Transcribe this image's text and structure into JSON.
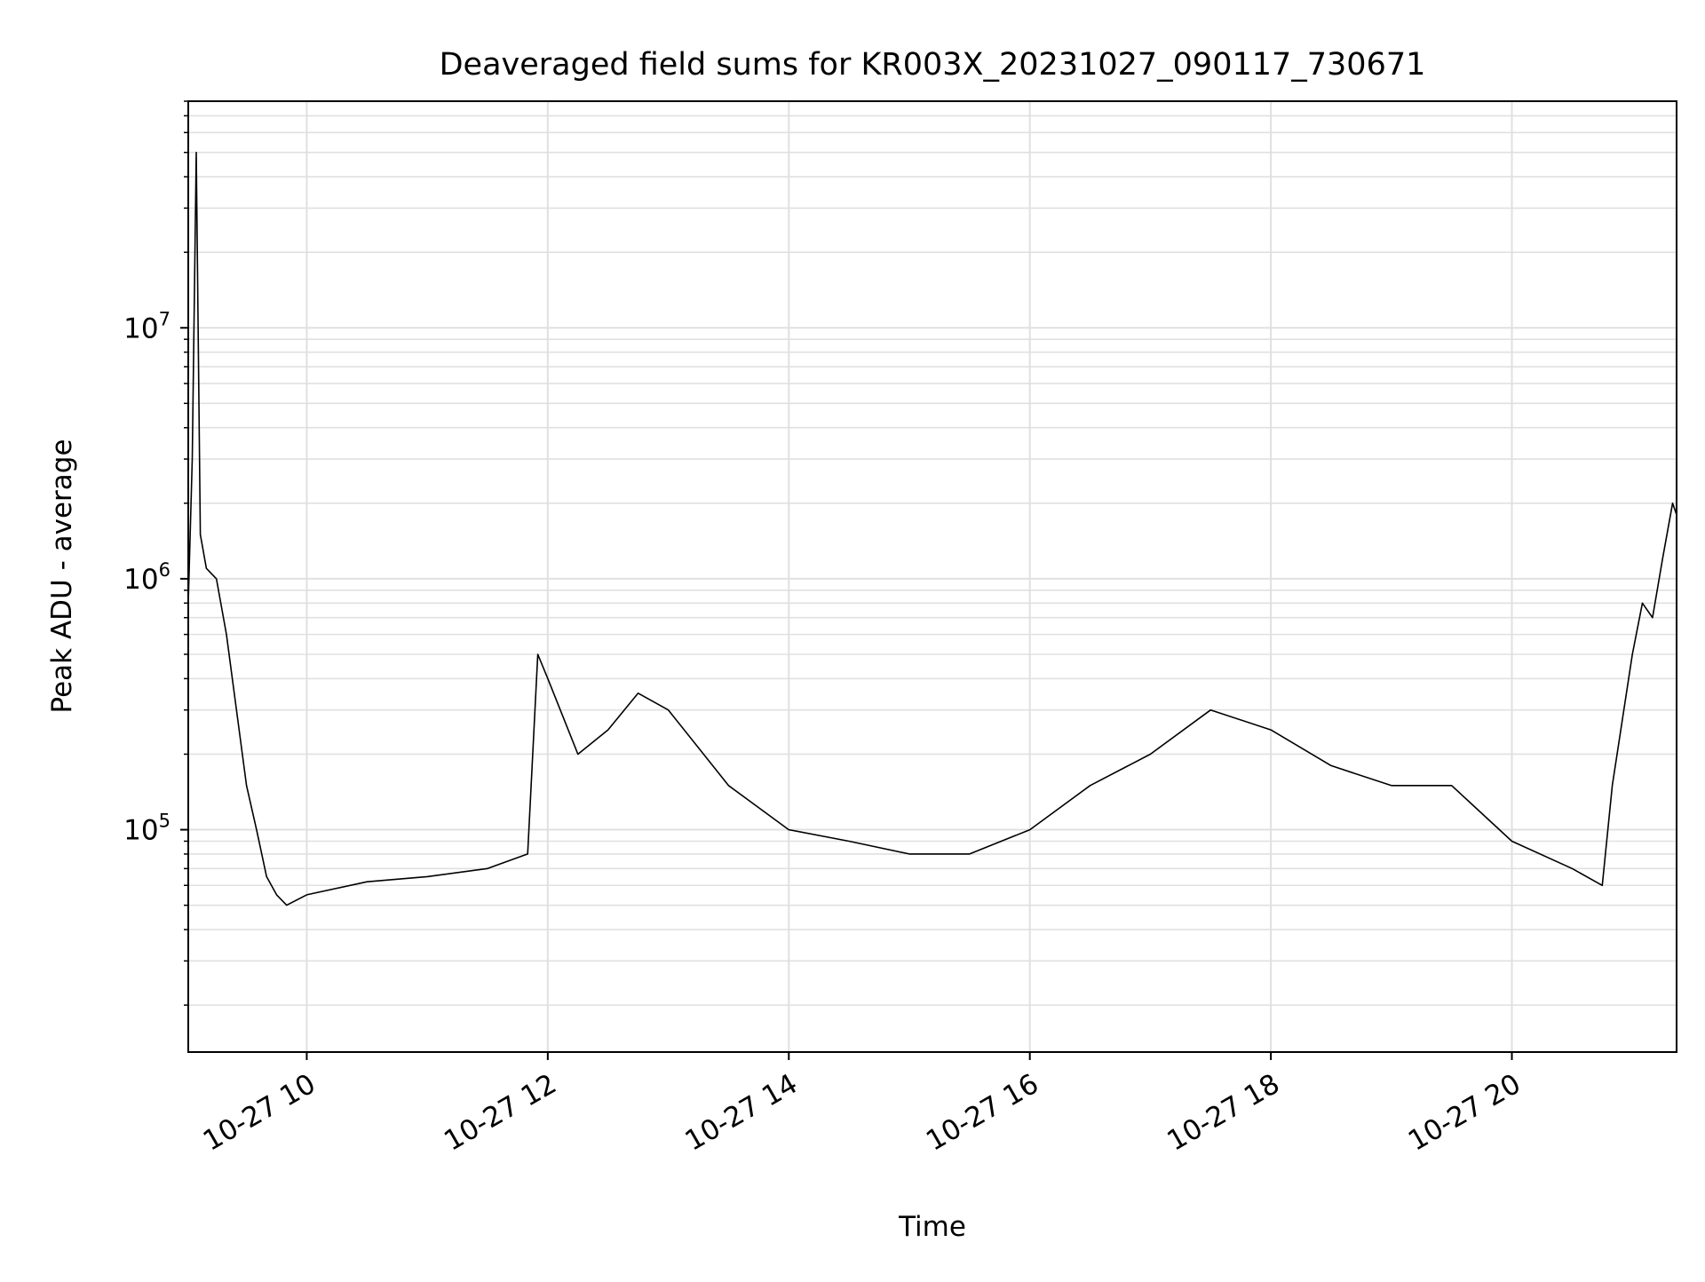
{
  "chart_data": {
    "type": "line",
    "title": "Deaveraged field sums for KR003X_20231027_090117_730671",
    "xlabel": "Time",
    "ylabel": "Peak ADU - average",
    "x_ticks": [
      "10-27 10",
      "10-27 12",
      "10-27 14",
      "10-27 16",
      "10-27 18",
      "10-27 20"
    ],
    "y_ticks": [
      {
        "base": "10",
        "exp": "5"
      },
      {
        "base": "10",
        "exp": "6"
      },
      {
        "base": "10",
        "exp": "7"
      }
    ],
    "x_range": [
      "2023-10-27 09:01",
      "2023-10-27 21:22"
    ],
    "y_range": [
      13000,
      80000000
    ],
    "y_scale": "log",
    "grid": true,
    "line_color": "#000000",
    "grid_color": "#e0e0e0",
    "series": [
      {
        "x": [
          "2023-10-27 09:01",
          "2023-10-27 09:03",
          "2023-10-27 09:05",
          "2023-10-27 09:07",
          "2023-10-27 09:10",
          "2023-10-27 09:15",
          "2023-10-27 09:20",
          "2023-10-27 09:25",
          "2023-10-27 09:30",
          "2023-10-27 09:35",
          "2023-10-27 09:40",
          "2023-10-27 09:45",
          "2023-10-27 09:50",
          "2023-10-27 10:00",
          "2023-10-27 10:30",
          "2023-10-27 11:00",
          "2023-10-27 11:30",
          "2023-10-27 11:50",
          "2023-10-27 11:55",
          "2023-10-27 12:00",
          "2023-10-27 12:15",
          "2023-10-27 12:30",
          "2023-10-27 12:45",
          "2023-10-27 13:00",
          "2023-10-27 13:30",
          "2023-10-27 14:00",
          "2023-10-27 14:30",
          "2023-10-27 15:00",
          "2023-10-27 15:30",
          "2023-10-27 16:00",
          "2023-10-27 16:30",
          "2023-10-27 17:00",
          "2023-10-27 17:30",
          "2023-10-27 18:00",
          "2023-10-27 18:30",
          "2023-10-27 19:00",
          "2023-10-27 19:30",
          "2023-10-27 20:00",
          "2023-10-27 20:30",
          "2023-10-27 20:45",
          "2023-10-27 20:50",
          "2023-10-27 21:00",
          "2023-10-27 21:05",
          "2023-10-27 21:10",
          "2023-10-27 21:15",
          "2023-10-27 21:20",
          "2023-10-27 21:22"
        ],
        "y": [
          800000,
          3000000,
          50000000,
          1500000,
          1100000,
          1000000,
          600000,
          300000,
          150000,
          100000,
          65000,
          55000,
          50000,
          55000,
          62000,
          65000,
          70000,
          80000,
          500000,
          400000,
          200000,
          250000,
          350000,
          300000,
          150000,
          100000,
          90000,
          80000,
          80000,
          100000,
          150000,
          200000,
          300000,
          250000,
          180000,
          150000,
          150000,
          90000,
          70000,
          60000,
          150000,
          500000,
          800000,
          700000,
          1200000,
          2000000,
          1800000
        ]
      }
    ]
  }
}
